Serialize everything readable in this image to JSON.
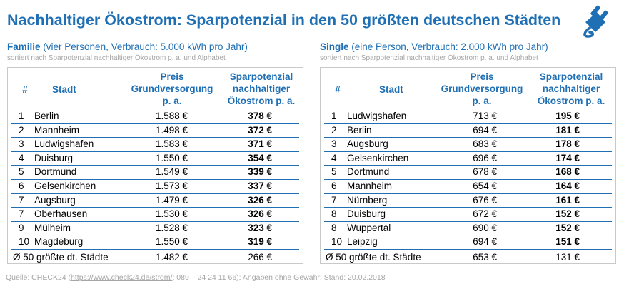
{
  "title": "Nachhaltiger Ökostrom: Sparpotenzial in den 50 größten deutschen Städten",
  "family": {
    "subtitle_bold": "Familie",
    "subtitle_rest": " (vier Personen, Verbrauch: 5.000 kWh pro Jahr)",
    "sort_note": "sortiert nach Sparpotenzial nachhaltiger Ökostrom p. a. und Alphabet",
    "headers": {
      "num": "#",
      "city": "Stadt",
      "price_line1": "Preis",
      "price_line2": "Grundversorgung",
      "price_line3": "p. a.",
      "save_line1": "Sparpotenzial",
      "save_line2": "nachhaltiger",
      "save_line3": "Ökostrom p. a."
    },
    "rows": [
      {
        "num": "1",
        "city": "Berlin",
        "price": "1.588 €",
        "save": "378 €"
      },
      {
        "num": "2",
        "city": "Mannheim",
        "price": "1.498 €",
        "save": "372 €"
      },
      {
        "num": "3",
        "city": "Ludwigshafen",
        "price": "1.583 €",
        "save": "371 €"
      },
      {
        "num": "4",
        "city": "Duisburg",
        "price": "1.550 €",
        "save": "354 €"
      },
      {
        "num": "5",
        "city": "Dortmund",
        "price": "1.549 €",
        "save": "339 €"
      },
      {
        "num": "6",
        "city": "Gelsenkirchen",
        "price": "1.573 €",
        "save": "337 €"
      },
      {
        "num": "7",
        "city": "Augsburg",
        "price": "1.479 €",
        "save": "326 €"
      },
      {
        "num": "7",
        "city": "Oberhausen",
        "price": "1.530 €",
        "save": "326 €"
      },
      {
        "num": "9",
        "city": "Mülheim",
        "price": "1.528 €",
        "save": "323 €"
      },
      {
        "num": "10",
        "city": "Magdeburg",
        "price": "1.550 €",
        "save": "319 €"
      }
    ],
    "average": {
      "label": "Ø 50 größte dt. Städte",
      "price": "1.482 €",
      "save": "266 €"
    }
  },
  "single": {
    "subtitle_bold": "Single",
    "subtitle_rest": " (eine Person, Verbrauch: 2.000 kWh pro Jahr)",
    "sort_note": "sortiert nach Sparpotenzial nachhaltiger Ökostrom p. a. und Alphabet",
    "headers": {
      "num": "#",
      "city": "Stadt",
      "price_line1": "Preis",
      "price_line2": "Grundversorgung",
      "price_line3": "p. a.",
      "save_line1": "Sparpotenzial",
      "save_line2": "nachhaltiger",
      "save_line3": "Ökostrom p. a."
    },
    "rows": [
      {
        "num": "1",
        "city": "Ludwigshafen",
        "price": "713 €",
        "save": "195 €"
      },
      {
        "num": "2",
        "city": "Berlin",
        "price": "694 €",
        "save": "181 €"
      },
      {
        "num": "3",
        "city": "Augsburg",
        "price": "683 €",
        "save": "178 €"
      },
      {
        "num": "4",
        "city": "Gelsenkirchen",
        "price": "696 €",
        "save": "174 €"
      },
      {
        "num": "5",
        "city": "Dortmund",
        "price": "678 €",
        "save": "168 €"
      },
      {
        "num": "6",
        "city": "Mannheim",
        "price": "654 €",
        "save": "164 €"
      },
      {
        "num": "7",
        "city": "Nürnberg",
        "price": "676 €",
        "save": "161 €"
      },
      {
        "num": "8",
        "city": "Duisburg",
        "price": "672 €",
        "save": "152 €"
      },
      {
        "num": "8",
        "city": "Wuppertal",
        "price": "690 €",
        "save": "152 €"
      },
      {
        "num": "10",
        "city": "Leipzig",
        "price": "694 €",
        "save": "151 €"
      }
    ],
    "average": {
      "label": "Ø 50 größte dt. Städte",
      "price": "653 €",
      "save": "131 €"
    }
  },
  "source": {
    "prefix": "Quelle: CHECK24 (",
    "link": "https://www.check24.de/strom/",
    "suffix": "; 089 – 24 24 11 66); Angaben ohne Gewähr; Stand: 20.02.2018"
  },
  "colors": {
    "accent": "#1f6fb4",
    "muted": "#a6a6a6",
    "border": "#c9c9c9"
  },
  "icons": {
    "logo": "power-plug-icon"
  }
}
